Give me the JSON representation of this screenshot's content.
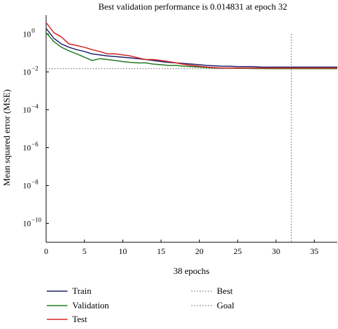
{
  "chart_data": {
    "type": "line",
    "title": "Best validation performance is 0.014831 at epoch 32",
    "xlabel": "38 epochs",
    "ylabel": "Mean squared error (MSE)",
    "xlim": [
      0,
      38
    ],
    "ylim": [
      1e-11,
      10
    ],
    "y_scale": "log",
    "x_ticks": [
      0,
      5,
      10,
      15,
      20,
      25,
      30,
      35
    ],
    "y_ticks": [
      {
        "value": 1,
        "base": "10",
        "exp": "0"
      },
      {
        "value": 0.01,
        "base": "10",
        "exp": "−2"
      },
      {
        "value": 0.0001,
        "base": "10",
        "exp": "−4"
      },
      {
        "value": 1e-06,
        "base": "10",
        "exp": "−6"
      },
      {
        "value": 1e-08,
        "base": "10",
        "exp": "−8"
      },
      {
        "value": 1e-10,
        "base": "10",
        "exp": "−10"
      }
    ],
    "grid": false,
    "legend_position": "bottom",
    "series": [
      {
        "name": "Train",
        "color": "#1f1f6e",
        "style": "solid",
        "x": [
          0,
          1,
          2,
          3,
          4,
          5,
          6,
          7,
          8,
          9,
          10,
          11,
          12,
          13,
          14,
          15,
          16,
          17,
          18,
          19,
          20,
          21,
          22,
          23,
          24,
          25,
          26,
          27,
          28,
          29,
          30,
          31,
          32,
          33,
          34,
          35,
          36,
          37,
          38
        ],
        "values": [
          2.0,
          0.6,
          0.3,
          0.2,
          0.15,
          0.12,
          0.09,
          0.08,
          0.07,
          0.065,
          0.06,
          0.055,
          0.05,
          0.045,
          0.04,
          0.035,
          0.032,
          0.03,
          0.028,
          0.026,
          0.024,
          0.022,
          0.021,
          0.02,
          0.02,
          0.019,
          0.019,
          0.019,
          0.018,
          0.018,
          0.018,
          0.018,
          0.018,
          0.018,
          0.018,
          0.018,
          0.018,
          0.018,
          0.018
        ]
      },
      {
        "name": "Validation",
        "color": "#1f7a1f",
        "style": "solid",
        "x": [
          0,
          1,
          2,
          3,
          4,
          5,
          6,
          7,
          8,
          9,
          10,
          11,
          12,
          13,
          14,
          15,
          16,
          17,
          18,
          19,
          20,
          21,
          22,
          23,
          24,
          25,
          26,
          27,
          28,
          29,
          30,
          31,
          32,
          33,
          34,
          35,
          36,
          37,
          38
        ],
        "values": [
          1.2,
          0.4,
          0.2,
          0.13,
          0.09,
          0.06,
          0.04,
          0.05,
          0.045,
          0.04,
          0.035,
          0.032,
          0.03,
          0.03,
          0.026,
          0.024,
          0.022,
          0.022,
          0.02,
          0.019,
          0.018,
          0.017,
          0.016,
          0.016,
          0.016,
          0.0155,
          0.0155,
          0.0152,
          0.0151,
          0.015,
          0.015,
          0.015,
          0.014831,
          0.0149,
          0.015,
          0.015,
          0.015,
          0.015,
          0.015
        ]
      },
      {
        "name": "Test",
        "color": "#d62020",
        "style": "solid",
        "x": [
          0,
          1,
          2,
          3,
          4,
          5,
          6,
          7,
          8,
          9,
          10,
          11,
          12,
          13,
          14,
          15,
          16,
          17,
          18,
          19,
          20,
          21,
          22,
          23,
          24,
          25,
          26,
          27,
          28,
          29,
          30,
          31,
          32,
          33,
          34,
          35,
          36,
          37,
          38
        ],
        "values": [
          4.0,
          1.2,
          0.7,
          0.3,
          0.25,
          0.2,
          0.15,
          0.12,
          0.09,
          0.09,
          0.08,
          0.07,
          0.055,
          0.045,
          0.045,
          0.04,
          0.035,
          0.03,
          0.025,
          0.022,
          0.02,
          0.018,
          0.017,
          0.016,
          0.016,
          0.016,
          0.016,
          0.016,
          0.016,
          0.016,
          0.016,
          0.016,
          0.016,
          0.016,
          0.016,
          0.016,
          0.016,
          0.016,
          0.016
        ]
      }
    ],
    "markers": [
      {
        "name": "Best",
        "color": "#555555",
        "style": "dotted",
        "orientation": "vertical",
        "x": 32
      },
      {
        "name": "Goal",
        "color": "#555555",
        "style": "dotted",
        "orientation": "horizontal",
        "y": 0.014831
      }
    ],
    "legend": [
      {
        "label": "Train",
        "color": "#1f1f6e",
        "style": "solid"
      },
      {
        "label": "Validation",
        "color": "#1f7a1f",
        "style": "solid"
      },
      {
        "label": "Test",
        "color": "#d62020",
        "style": "solid"
      },
      {
        "label": "Best",
        "color": "#555555",
        "style": "dotted"
      },
      {
        "label": "Goal",
        "color": "#555555",
        "style": "dotted"
      }
    ]
  }
}
